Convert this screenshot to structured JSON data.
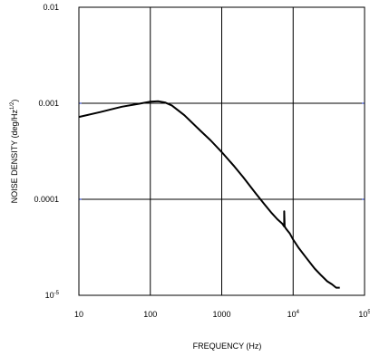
{
  "chart_data": {
    "type": "line",
    "title": "",
    "xlabel": "FREQUENCY (Hz)",
    "ylabel": "NOISE DENSITY (deg/Hz",
    "ylabel_superscript": "1/2",
    "ylabel_suffix": ")",
    "x_scale": "log",
    "y_scale": "log",
    "xlim": [
      10,
      100000
    ],
    "ylim": [
      1e-05,
      0.01
    ],
    "grid": true,
    "x_ticks": [
      {
        "value": 10,
        "base": "10",
        "exp": ""
      },
      {
        "value": 100,
        "base": "100",
        "exp": ""
      },
      {
        "value": 1000,
        "base": "1000",
        "exp": ""
      },
      {
        "value": 10000,
        "base": "10",
        "exp": "4"
      },
      {
        "value": 100000,
        "base": "10",
        "exp": "5"
      }
    ],
    "y_ticks": [
      {
        "value": 0.01,
        "base": "0.01",
        "exp": ""
      },
      {
        "value": 0.001,
        "base": "0.001",
        "exp": ""
      },
      {
        "value": 0.0001,
        "base": "0.0001",
        "exp": ""
      },
      {
        "value": 1e-05,
        "base": "10",
        "exp": "-5"
      }
    ],
    "series": [
      {
        "color": "#000000",
        "x": [
          10,
          20,
          40,
          70,
          100,
          130,
          160,
          200,
          300,
          500,
          700,
          1000,
          1500,
          2000,
          3000,
          4000,
          5000,
          6000,
          7000,
          7500,
          7500,
          7600,
          8000,
          9000,
          10000,
          12000,
          15000,
          20000,
          25000,
          30000,
          35000,
          40000,
          45000
        ],
        "y": [
          0.00072,
          0.00081,
          0.00092,
          0.00099,
          0.00104,
          0.00105,
          0.00102,
          0.00095,
          0.00075,
          0.00052,
          0.00041,
          0.00031,
          0.00022,
          0.00017,
          0.000115,
          8.8e-05,
          7.2e-05,
          6.2e-05,
          5.6e-05,
          5.2e-05,
          7.5e-05,
          5.2e-05,
          4.9e-05,
          4.4e-05,
          3.8e-05,
          3.1e-05,
          2.5e-05,
          1.9e-05,
          1.6e-05,
          1.4e-05,
          1.3e-05,
          1.2e-05,
          1.2e-05
        ]
      }
    ]
  }
}
